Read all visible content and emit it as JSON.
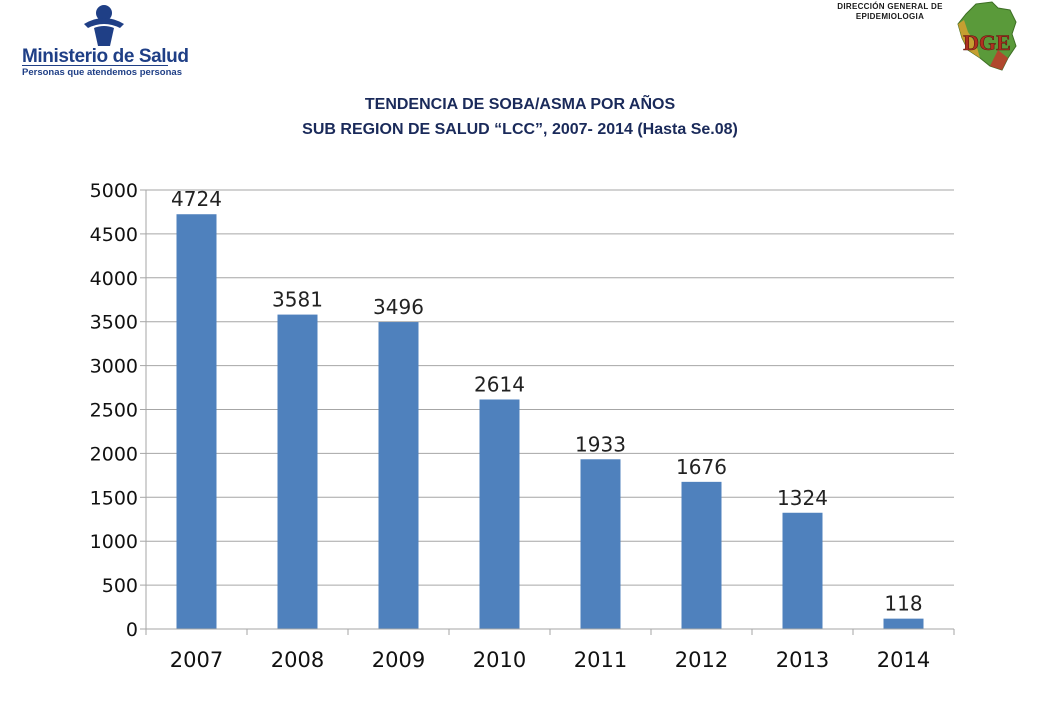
{
  "header": {
    "ministry_name": "Ministerio de Salud",
    "ministry_tagline": "Personas que atendemos personas",
    "agency_line1": "DIRECCIÓN GENERAL DE",
    "agency_line2": "EPIDEMIOLOGIA",
    "agency_logo_letters": "DGE"
  },
  "colors": {
    "bar": "#4f81bd",
    "grid": "#a6a6a6",
    "title": "#1a2a5a",
    "logo_blue": "#1f3f86"
  },
  "chart_data": {
    "type": "bar",
    "title": "TENDENCIA DE SOBA/ASMA POR AÑOS",
    "subtitle": "SUB REGION DE SALUD “LCC”, 2007- 2014 (Hasta Se.08)",
    "categories": [
      "2007",
      "2008",
      "2009",
      "2010",
      "2011",
      "2012",
      "2013",
      "2014"
    ],
    "values": [
      4724,
      3581,
      3496,
      2614,
      1933,
      1676,
      1324,
      118
    ],
    "data_labels": [
      "4724",
      "3581",
      "3496",
      "2614",
      "1933",
      "1676",
      "1324",
      "118"
    ],
    "yticks": [
      "0",
      "500",
      "1000",
      "1500",
      "2000",
      "2500",
      "3000",
      "3500",
      "4000",
      "4500",
      "5000"
    ],
    "ylim": [
      0,
      5000
    ],
    "xlabel": "",
    "ylabel": "",
    "grid": true,
    "legend": "none"
  }
}
